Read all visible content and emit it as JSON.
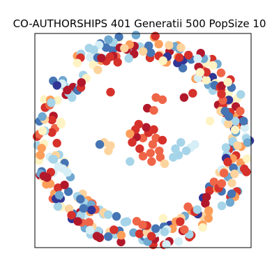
{
  "figure": {
    "title": "CO-AUTHORSHIPS 401 Generatii 500 PopSize 10"
  },
  "colors": {
    "background": "#ffffff",
    "frame": "#000000",
    "palette": {
      "dark_red": "#b2182b",
      "red": "#d6312b",
      "orange_red": "#ef6548",
      "orange": "#fc9e5a",
      "light_orange": "#fdd49e",
      "cream": "#fff3c4",
      "pale_blue": "#d6eef5",
      "light_blue": "#a6d4e8",
      "mid_blue": "#6fa8d0",
      "blue": "#4575b4",
      "dark_blue": "#313695"
    }
  },
  "chart_data": {
    "type": "scatter",
    "title": "CO-AUTHORSHIPS 401 Generatii 500 PopSize 10",
    "xlabel": "",
    "ylabel": "",
    "axes_visible": false,
    "grid": false,
    "legend": "none",
    "layout": "network graph drawing: dense central cluster of nodes surrounded by a ring of nodes",
    "colormap": "RdYlBu",
    "series": [
      {
        "values": [
          {
            "x": 0.0,
            "y": 0.02,
            "c": "orange_red"
          },
          {
            "x": 0.05,
            "y": 0.07,
            "c": "red"
          },
          {
            "x": -0.06,
            "y": 0.03,
            "c": "dark_red"
          },
          {
            "x": 0.09,
            "y": -0.04,
            "c": "orange_red"
          },
          {
            "x": -0.03,
            "y": -0.08,
            "c": "red"
          },
          {
            "x": 0.12,
            "y": 0.02,
            "c": "orange_red"
          },
          {
            "x": -0.1,
            "y": -0.02,
            "c": "red"
          },
          {
            "x": 0.03,
            "y": 0.12,
            "c": "dark_red"
          },
          {
            "x": 0.07,
            "y": -0.12,
            "c": "orange_red"
          },
          {
            "x": -0.07,
            "y": 0.1,
            "c": "red"
          },
          {
            "x": 0.15,
            "y": -0.1,
            "c": "orange_red"
          },
          {
            "x": -0.12,
            "y": 0.06,
            "c": "orange"
          },
          {
            "x": 0.18,
            "y": 0.0,
            "c": "red"
          },
          {
            "x": 0.0,
            "y": -0.15,
            "c": "orange_red"
          },
          {
            "x": 0.1,
            "y": 0.1,
            "c": "red"
          },
          {
            "x": -0.04,
            "y": 0.15,
            "c": "red"
          },
          {
            "x": 0.08,
            "y": -0.2,
            "c": "orange_red"
          },
          {
            "x": 0.04,
            "y": 0.3,
            "c": "dark_red"
          },
          {
            "x": 0.1,
            "y": 0.28,
            "c": "orange_red"
          },
          {
            "x": 0.16,
            "y": -0.16,
            "c": "orange_red"
          },
          {
            "x": -0.3,
            "y": -0.05,
            "c": "light_orange"
          },
          {
            "x": -0.36,
            "y": -0.02,
            "c": "light_orange"
          },
          {
            "x": -0.32,
            "y": -0.1,
            "c": "light_orange"
          },
          {
            "x": -0.4,
            "y": -0.04,
            "c": "blue"
          },
          {
            "x": 0.35,
            "y": -0.02,
            "c": "light_blue"
          },
          {
            "x": 0.3,
            "y": -0.08,
            "c": "light_blue"
          },
          {
            "x": 0.33,
            "y": -0.14,
            "c": "light_blue"
          },
          {
            "x": 0.28,
            "y": -0.16,
            "c": "light_blue"
          },
          {
            "x": 0.44,
            "y": -0.07,
            "c": "pale_blue"
          },
          {
            "x": 0.48,
            "y": -0.04,
            "c": "pale_blue"
          },
          {
            "x": 0.4,
            "y": -0.1,
            "c": "light_blue"
          },
          {
            "x": -0.12,
            "y": -0.2,
            "c": "light_blue"
          },
          {
            "x": 0.2,
            "y": -0.22,
            "c": "light_orange"
          },
          {
            "x": 0.12,
            "y": 0.4,
            "c": "orange_red"
          },
          {
            "x": 0.18,
            "y": 0.38,
            "c": "orange_red"
          },
          {
            "x": 0.38,
            "y": 0.4,
            "c": "dark_red"
          },
          {
            "x": 0.46,
            "y": 0.44,
            "c": "red"
          },
          {
            "x": -0.3,
            "y": 0.45,
            "c": "red"
          },
          {
            "x": 0.62,
            "y": 0.18,
            "c": "cream"
          }
        ]
      }
    ],
    "ring": {
      "center": [
        0,
        0
      ],
      "radius": 0.88,
      "node_count": 360,
      "color_weights": {
        "dark_red": 2,
        "red": 2,
        "orange_red": 1,
        "orange": 2,
        "light_orange": 2,
        "cream": 2,
        "pale_blue": 2,
        "light_blue": 3,
        "mid_blue": 1,
        "blue": 2,
        "dark_blue": 1
      }
    }
  }
}
